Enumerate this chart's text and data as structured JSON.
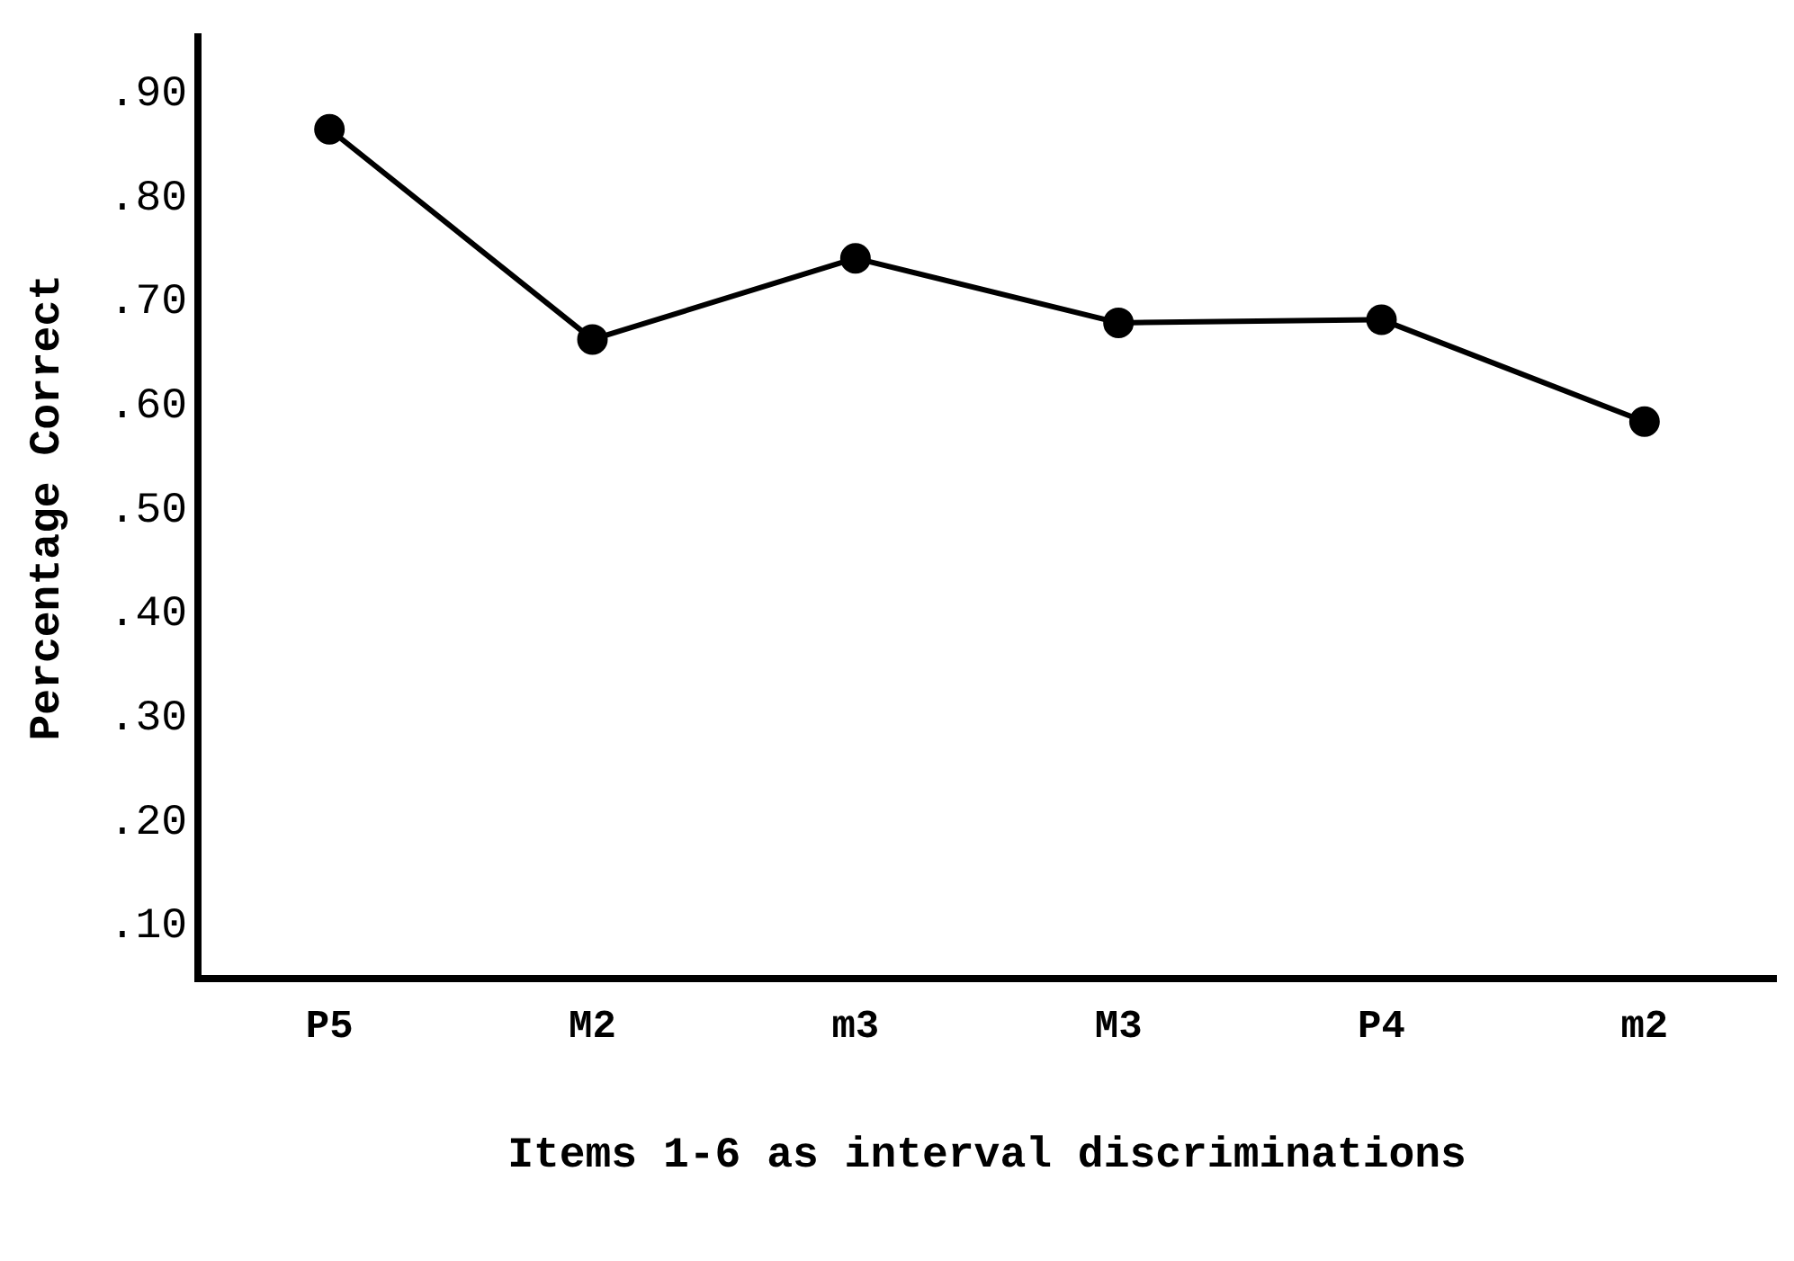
{
  "chart_data": {
    "type": "line",
    "xlabel": "Items 1-6 as interval discriminations",
    "ylabel": "Percentage Correct",
    "categories": [
      "P5",
      "M2",
      "m3",
      "M3",
      "P4",
      "m2"
    ],
    "series": [
      {
        "color": "#000000",
        "values": [
          0.866,
          0.664,
          0.742,
          0.68,
          0.683,
          0.585
        ]
      }
    ],
    "ylim": [
      0.05,
      0.955
    ],
    "yticks": [
      {
        "value": 0.1,
        "label": ".10"
      },
      {
        "value": 0.2,
        "label": ".20"
      },
      {
        "value": 0.3,
        "label": ".30"
      },
      {
        "value": 0.4,
        "label": ".40"
      },
      {
        "value": 0.5,
        "label": ".50"
      },
      {
        "value": 0.6,
        "label": ".60"
      },
      {
        "value": 0.7,
        "label": ".70"
      },
      {
        "value": 0.8,
        "label": ".80"
      },
      {
        "value": 0.9,
        "label": ".90"
      }
    ],
    "grid": false,
    "legend": false,
    "marker": "circle",
    "line_style": "solid"
  }
}
